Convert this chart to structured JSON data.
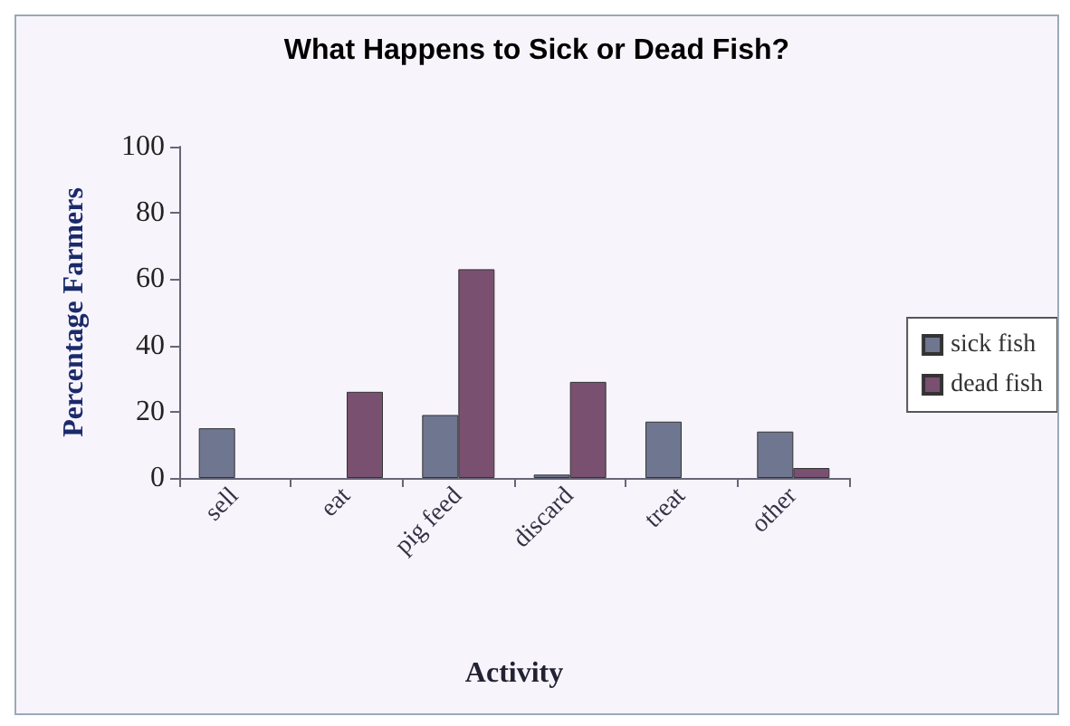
{
  "chart_data": {
    "type": "bar",
    "title": "What Happens to Sick or Dead Fish?",
    "xlabel": "Activity",
    "ylabel": "Percentage Farmers",
    "categories": [
      "sell",
      "eat",
      "pig feed",
      "discard",
      "treat",
      "other"
    ],
    "series": [
      {
        "name": "sick fish",
        "color": "#6f7690",
        "values": [
          15,
          null,
          19,
          1,
          17,
          14
        ]
      },
      {
        "name": "dead fish",
        "color": "#7a5070",
        "values": [
          null,
          26,
          63,
          29,
          null,
          3
        ]
      }
    ],
    "ylim": [
      0,
      100
    ],
    "yticks": [
      0,
      20,
      40,
      60,
      80,
      100
    ],
    "grid": false,
    "legend": "right"
  }
}
